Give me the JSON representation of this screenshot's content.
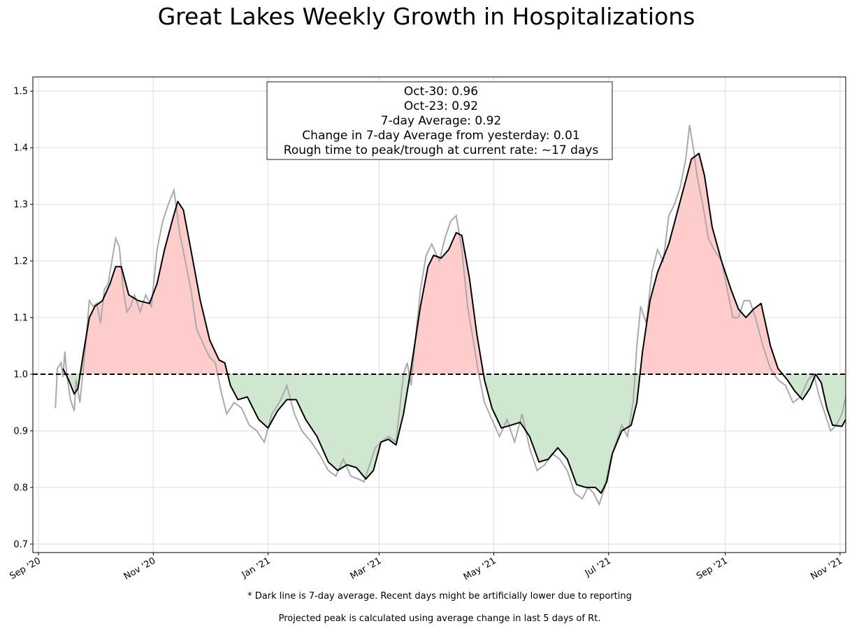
{
  "chart_data": {
    "type": "line",
    "title": "Great Lakes Weekly Growth in Hospitalizations",
    "xlabel": "",
    "ylabel": "",
    "x_range": [
      "2020-08-29",
      "2021-11-04"
    ],
    "ylim": [
      0.685,
      1.525
    ],
    "reference_line": 1.0,
    "grid": true,
    "x_ticks": [
      {
        "date": "2020-09-01",
        "label": "Sep '20"
      },
      {
        "date": "2020-11-01",
        "label": "Nov '20"
      },
      {
        "date": "2021-01-01",
        "label": "Jan '21"
      },
      {
        "date": "2021-03-01",
        "label": "Mar '21"
      },
      {
        "date": "2021-05-01",
        "label": "May '21"
      },
      {
        "date": "2021-07-01",
        "label": "Jul '21"
      },
      {
        "date": "2021-09-01",
        "label": "Sep '21"
      },
      {
        "date": "2021-11-01",
        "label": "Nov '21"
      }
    ],
    "y_ticks": [
      {
        "value": 0.7,
        "label": "0.7"
      },
      {
        "value": 0.8,
        "label": "0.8"
      },
      {
        "value": 0.9,
        "label": "0.9"
      },
      {
        "value": 1.0,
        "label": "1.0"
      },
      {
        "value": 1.1,
        "label": "1.1"
      },
      {
        "value": 1.2,
        "label": "1.2"
      },
      {
        "value": 1.3,
        "label": "1.3"
      },
      {
        "value": 1.4,
        "label": "1.4"
      },
      {
        "value": 1.5,
        "label": "1.5"
      }
    ],
    "colors": {
      "above": "#ffcccc",
      "below": "#cfe6cf",
      "average": "#000000",
      "daily": "#aaaaaa"
    },
    "series": [
      {
        "key": "avg",
        "points": [
          [
            "2020-09-14",
            1.01
          ],
          [
            "2020-09-17",
            0.99
          ],
          [
            "2020-09-20",
            0.965
          ],
          [
            "2020-09-22",
            0.975
          ],
          [
            "2020-09-25",
            1.04
          ],
          [
            "2020-09-28",
            1.1
          ],
          [
            "2020-10-01",
            1.12
          ],
          [
            "2020-10-05",
            1.13
          ],
          [
            "2020-10-09",
            1.16
          ],
          [
            "2020-10-12",
            1.19
          ],
          [
            "2020-10-15",
            1.19
          ],
          [
            "2020-10-19",
            1.14
          ],
          [
            "2020-10-24",
            1.13
          ],
          [
            "2020-10-30",
            1.125
          ],
          [
            "2020-11-03",
            1.16
          ],
          [
            "2020-11-07",
            1.22
          ],
          [
            "2020-11-11",
            1.27
          ],
          [
            "2020-11-14",
            1.305
          ],
          [
            "2020-11-17",
            1.29
          ],
          [
            "2020-11-21",
            1.22
          ],
          [
            "2020-11-26",
            1.13
          ],
          [
            "2020-12-01",
            1.06
          ],
          [
            "2020-12-06",
            1.025
          ],
          [
            "2020-12-09",
            1.02
          ],
          [
            "2020-12-12",
            0.98
          ],
          [
            "2020-12-16",
            0.955
          ],
          [
            "2020-12-21",
            0.96
          ],
          [
            "2020-12-27",
            0.92
          ],
          [
            "2021-01-01",
            0.905
          ],
          [
            "2021-01-06",
            0.935
          ],
          [
            "2021-01-11",
            0.955
          ],
          [
            "2021-01-16",
            0.955
          ],
          [
            "2021-01-21",
            0.92
          ],
          [
            "2021-01-27",
            0.89
          ],
          [
            "2021-02-02",
            0.845
          ],
          [
            "2021-02-07",
            0.83
          ],
          [
            "2021-02-12",
            0.84
          ],
          [
            "2021-02-17",
            0.835
          ],
          [
            "2021-02-22",
            0.815
          ],
          [
            "2021-02-26",
            0.83
          ],
          [
            "2021-03-02",
            0.88
          ],
          [
            "2021-03-06",
            0.885
          ],
          [
            "2021-03-10",
            0.875
          ],
          [
            "2021-03-14",
            0.93
          ],
          [
            "2021-03-18",
            1.01
          ],
          [
            "2021-03-23",
            1.12
          ],
          [
            "2021-03-27",
            1.19
          ],
          [
            "2021-03-30",
            1.21
          ],
          [
            "2021-04-03",
            1.205
          ],
          [
            "2021-04-07",
            1.22
          ],
          [
            "2021-04-11",
            1.25
          ],
          [
            "2021-04-14",
            1.245
          ],
          [
            "2021-04-18",
            1.17
          ],
          [
            "2021-04-22",
            1.07
          ],
          [
            "2021-04-26",
            0.99
          ],
          [
            "2021-04-30",
            0.94
          ],
          [
            "2021-05-05",
            0.905
          ],
          [
            "2021-05-10",
            0.91
          ],
          [
            "2021-05-15",
            0.915
          ],
          [
            "2021-05-20",
            0.89
          ],
          [
            "2021-05-25",
            0.845
          ],
          [
            "2021-05-30",
            0.85
          ],
          [
            "2021-06-04",
            0.87
          ],
          [
            "2021-06-09",
            0.85
          ],
          [
            "2021-06-14",
            0.805
          ],
          [
            "2021-06-19",
            0.8
          ],
          [
            "2021-06-24",
            0.8
          ],
          [
            "2021-06-27",
            0.79
          ],
          [
            "2021-06-30",
            0.81
          ],
          [
            "2021-07-03",
            0.86
          ],
          [
            "2021-07-08",
            0.9
          ],
          [
            "2021-07-13",
            0.91
          ],
          [
            "2021-07-16",
            0.95
          ],
          [
            "2021-07-19",
            1.04
          ],
          [
            "2021-07-23",
            1.13
          ],
          [
            "2021-07-27",
            1.18
          ],
          [
            "2021-08-02",
            1.23
          ],
          [
            "2021-08-06",
            1.28
          ],
          [
            "2021-08-10",
            1.33
          ],
          [
            "2021-08-14",
            1.38
          ],
          [
            "2021-08-18",
            1.39
          ],
          [
            "2021-08-21",
            1.35
          ],
          [
            "2021-08-25",
            1.26
          ],
          [
            "2021-08-30",
            1.2
          ],
          [
            "2021-09-04",
            1.15
          ],
          [
            "2021-09-08",
            1.115
          ],
          [
            "2021-09-12",
            1.1
          ],
          [
            "2021-09-16",
            1.115
          ],
          [
            "2021-09-20",
            1.125
          ],
          [
            "2021-09-25",
            1.05
          ],
          [
            "2021-09-29",
            1.01
          ],
          [
            "2021-10-04",
            0.99
          ],
          [
            "2021-10-08",
            0.97
          ],
          [
            "2021-10-12",
            0.955
          ],
          [
            "2021-10-16",
            0.975
          ],
          [
            "2021-10-19",
            1.0
          ],
          [
            "2021-10-22",
            0.985
          ],
          [
            "2021-10-25",
            0.94
          ],
          [
            "2021-10-28",
            0.91
          ],
          [
            "2021-11-02",
            0.908
          ],
          [
            "2021-11-04",
            0.92
          ]
        ]
      },
      {
        "key": "daily",
        "points": [
          [
            "2020-09-10",
            0.94
          ],
          [
            "2020-09-11",
            1.01
          ],
          [
            "2020-09-13",
            1.02
          ],
          [
            "2020-09-14",
            0.995
          ],
          [
            "2020-09-15",
            1.04
          ],
          [
            "2020-09-16",
            1.0
          ],
          [
            "2020-09-18",
            0.955
          ],
          [
            "2020-09-20",
            0.935
          ],
          [
            "2020-09-21",
            0.99
          ],
          [
            "2020-09-23",
            0.95
          ],
          [
            "2020-09-26",
            1.05
          ],
          [
            "2020-09-28",
            1.13
          ],
          [
            "2020-09-30",
            1.12
          ],
          [
            "2020-10-02",
            1.125
          ],
          [
            "2020-10-04",
            1.09
          ],
          [
            "2020-10-06",
            1.15
          ],
          [
            "2020-10-08",
            1.16
          ],
          [
            "2020-10-10",
            1.2
          ],
          [
            "2020-10-12",
            1.24
          ],
          [
            "2020-10-14",
            1.225
          ],
          [
            "2020-10-16",
            1.15
          ],
          [
            "2020-10-18",
            1.11
          ],
          [
            "2020-10-20",
            1.12
          ],
          [
            "2020-10-22",
            1.14
          ],
          [
            "2020-10-25",
            1.11
          ],
          [
            "2020-10-28",
            1.14
          ],
          [
            "2020-10-31",
            1.12
          ],
          [
            "2020-11-03",
            1.22
          ],
          [
            "2020-11-06",
            1.27
          ],
          [
            "2020-11-09",
            1.3
          ],
          [
            "2020-11-12",
            1.325
          ],
          [
            "2020-11-15",
            1.25
          ],
          [
            "2020-11-18",
            1.2
          ],
          [
            "2020-11-21",
            1.15
          ],
          [
            "2020-11-24",
            1.08
          ],
          [
            "2020-11-28",
            1.05
          ],
          [
            "2020-12-01",
            1.03
          ],
          [
            "2020-12-04",
            1.02
          ],
          [
            "2020-12-07",
            0.97
          ],
          [
            "2020-12-10",
            0.93
          ],
          [
            "2020-12-14",
            0.95
          ],
          [
            "2020-12-18",
            0.94
          ],
          [
            "2020-12-22",
            0.91
          ],
          [
            "2020-12-26",
            0.9
          ],
          [
            "2020-12-30",
            0.88
          ],
          [
            "2021-01-03",
            0.93
          ],
          [
            "2021-01-07",
            0.95
          ],
          [
            "2021-01-11",
            0.98
          ],
          [
            "2021-01-15",
            0.93
          ],
          [
            "2021-01-19",
            0.9
          ],
          [
            "2021-01-24",
            0.88
          ],
          [
            "2021-01-28",
            0.86
          ],
          [
            "2021-02-02",
            0.83
          ],
          [
            "2021-02-06",
            0.82
          ],
          [
            "2021-02-10",
            0.85
          ],
          [
            "2021-02-14",
            0.82
          ],
          [
            "2021-02-18",
            0.815
          ],
          [
            "2021-02-21",
            0.81
          ],
          [
            "2021-02-24",
            0.84
          ],
          [
            "2021-02-27",
            0.87
          ],
          [
            "2021-03-02",
            0.88
          ],
          [
            "2021-03-06",
            0.89
          ],
          [
            "2021-03-10",
            0.88
          ],
          [
            "2021-03-14",
            1.0
          ],
          [
            "2021-03-16",
            1.02
          ],
          [
            "2021-03-18",
            0.98
          ],
          [
            "2021-03-20",
            1.05
          ],
          [
            "2021-03-23",
            1.15
          ],
          [
            "2021-03-26",
            1.21
          ],
          [
            "2021-03-29",
            1.23
          ],
          [
            "2021-04-02",
            1.2
          ],
          [
            "2021-04-05",
            1.24
          ],
          [
            "2021-04-08",
            1.27
          ],
          [
            "2021-04-11",
            1.28
          ],
          [
            "2021-04-14",
            1.22
          ],
          [
            "2021-04-17",
            1.12
          ],
          [
            "2021-04-20",
            1.06
          ],
          [
            "2021-04-23",
            1.0
          ],
          [
            "2021-04-26",
            0.95
          ],
          [
            "2021-04-30",
            0.92
          ],
          [
            "2021-05-04",
            0.89
          ],
          [
            "2021-05-08",
            0.92
          ],
          [
            "2021-05-12",
            0.88
          ],
          [
            "2021-05-16",
            0.93
          ],
          [
            "2021-05-20",
            0.87
          ],
          [
            "2021-05-24",
            0.83
          ],
          [
            "2021-05-28",
            0.84
          ],
          [
            "2021-06-01",
            0.86
          ],
          [
            "2021-06-05",
            0.85
          ],
          [
            "2021-06-09",
            0.83
          ],
          [
            "2021-06-13",
            0.79
          ],
          [
            "2021-06-17",
            0.78
          ],
          [
            "2021-06-20",
            0.8
          ],
          [
            "2021-06-23",
            0.79
          ],
          [
            "2021-06-26",
            0.77
          ],
          [
            "2021-06-29",
            0.8
          ],
          [
            "2021-07-02",
            0.85
          ],
          [
            "2021-07-05",
            0.88
          ],
          [
            "2021-07-08",
            0.91
          ],
          [
            "2021-07-11",
            0.89
          ],
          [
            "2021-07-14",
            0.95
          ],
          [
            "2021-07-16",
            1.05
          ],
          [
            "2021-07-18",
            1.12
          ],
          [
            "2021-07-21",
            1.09
          ],
          [
            "2021-07-24",
            1.18
          ],
          [
            "2021-07-27",
            1.22
          ],
          [
            "2021-07-30",
            1.2
          ],
          [
            "2021-08-02",
            1.28
          ],
          [
            "2021-08-05",
            1.3
          ],
          [
            "2021-08-08",
            1.33
          ],
          [
            "2021-08-11",
            1.38
          ],
          [
            "2021-08-13",
            1.44
          ],
          [
            "2021-08-15",
            1.4
          ],
          [
            "2021-08-17",
            1.35
          ],
          [
            "2021-08-20",
            1.3
          ],
          [
            "2021-08-23",
            1.24
          ],
          [
            "2021-08-26",
            1.22
          ],
          [
            "2021-08-30",
            1.2
          ],
          [
            "2021-09-02",
            1.15
          ],
          [
            "2021-09-05",
            1.1
          ],
          [
            "2021-09-08",
            1.1
          ],
          [
            "2021-09-11",
            1.13
          ],
          [
            "2021-09-14",
            1.13
          ],
          [
            "2021-09-17",
            1.1
          ],
          [
            "2021-09-21",
            1.05
          ],
          [
            "2021-09-25",
            1.01
          ],
          [
            "2021-09-29",
            0.99
          ],
          [
            "2021-10-03",
            0.98
          ],
          [
            "2021-10-07",
            0.95
          ],
          [
            "2021-10-11",
            0.96
          ],
          [
            "2021-10-15",
            0.99
          ],
          [
            "2021-10-18",
            1.0
          ],
          [
            "2021-10-21",
            0.96
          ],
          [
            "2021-10-24",
            0.93
          ],
          [
            "2021-10-27",
            0.9
          ],
          [
            "2021-10-30",
            0.91
          ],
          [
            "2021-11-02",
            0.93
          ],
          [
            "2021-11-04",
            0.96
          ]
        ]
      }
    ],
    "annotation": [
      "Oct-30: 0.96",
      "Oct-23: 0.92",
      "7-day Average: 0.92",
      "Change in 7-day Average from yesterday: 0.01",
      "Rough time to peak/trough at current rate: ~17 days"
    ],
    "footnotes": [
      "* Dark line is 7-day average. Recent days might be artificially lower due to reporting",
      "Projected peak is calculated using average change in last 5 days of Rt."
    ]
  }
}
